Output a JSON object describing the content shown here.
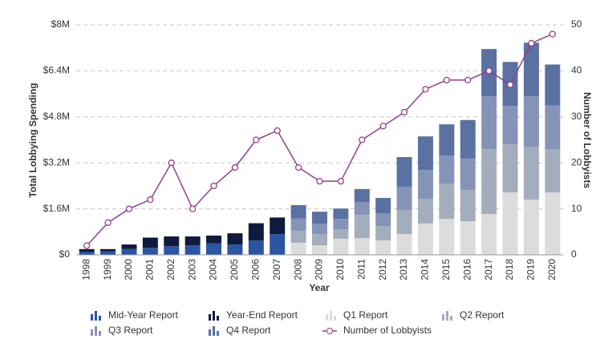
{
  "chart_data": {
    "type": "bar",
    "stacked": true,
    "x_label": "Year",
    "y_label": "Total Lobbying Spending",
    "y2_label": "Number of Lobbyists",
    "categories": [
      "1998",
      "1999",
      "2000",
      "2001",
      "2002",
      "2003",
      "2004",
      "2005",
      "2006",
      "2007",
      "2008",
      "2009",
      "2010",
      "2011",
      "2012",
      "2013",
      "2014",
      "2015",
      "2016",
      "2017",
      "2018",
      "2019",
      "2020"
    ],
    "series": [
      {
        "name": "Mid-Year Report",
        "color": "#2b55a3",
        "values": [
          100000,
          120000,
          200000,
          250000,
          300000,
          330000,
          400000,
          360000,
          500000,
          720000,
          null,
          null,
          null,
          null,
          null,
          null,
          null,
          null,
          null,
          null,
          null,
          null,
          null
        ]
      },
      {
        "name": "Year-End Report",
        "color": "#0f1b3d",
        "values": [
          100000,
          80000,
          160000,
          350000,
          340000,
          310000,
          270000,
          390000,
          600000,
          580000,
          null,
          null,
          null,
          null,
          null,
          null,
          null,
          null,
          null,
          null,
          null,
          null,
          null
        ]
      },
      {
        "name": "Q1 Report",
        "color": "#dcdcdc",
        "values": [
          null,
          null,
          null,
          null,
          null,
          null,
          null,
          null,
          null,
          null,
          420000,
          330000,
          560000,
          580000,
          500000,
          720000,
          1090000,
          1250000,
          1170000,
          1420000,
          2170000,
          1920000,
          2170000
        ]
      },
      {
        "name": "Q2 Report",
        "color": "#a4adbb",
        "values": [
          null,
          null,
          null,
          null,
          null,
          null,
          null,
          null,
          null,
          null,
          420000,
          390000,
          330000,
          810000,
          500000,
          840000,
          860000,
          1230000,
          1090000,
          2260000,
          1670000,
          1840000,
          1500000
        ]
      },
      {
        "name": "Q3 Report",
        "color": "#8594b6",
        "values": [
          null,
          null,
          null,
          null,
          null,
          null,
          null,
          null,
          null,
          null,
          420000,
          360000,
          360000,
          450000,
          450000,
          810000,
          1000000,
          970000,
          1090000,
          1840000,
          1340000,
          1750000,
          1530000
        ]
      },
      {
        "name": "Q4 Report",
        "color": "#5a71a1",
        "values": [
          null,
          null,
          null,
          null,
          null,
          null,
          null,
          null,
          null,
          null,
          470000,
          420000,
          360000,
          450000,
          530000,
          1030000,
          1170000,
          1090000,
          1340000,
          1640000,
          1530000,
          1870000,
          1420000
        ]
      },
      {
        "name": "Number of Lobbyists",
        "color": "#8e3f91",
        "type": "line",
        "axis": "y2",
        "values": [
          2,
          7,
          10,
          12,
          20,
          10,
          15,
          19,
          25,
          27,
          19,
          16,
          16,
          25,
          28,
          31,
          36,
          38,
          38,
          40,
          37,
          46,
          48
        ]
      }
    ],
    "ylim": [
      0,
      8000000
    ],
    "yticks": [
      {
        "value": 0,
        "label": "$0"
      },
      {
        "value": 1600000,
        "label": "$1.6M"
      },
      {
        "value": 3200000,
        "label": "$3.2M"
      },
      {
        "value": 4800000,
        "label": "$4.8M"
      },
      {
        "value": 6400000,
        "label": "$6.4M"
      },
      {
        "value": 8000000,
        "label": "$8M"
      }
    ],
    "y2lim": [
      0,
      50
    ],
    "y2ticks": [
      0,
      10,
      20,
      30,
      40,
      50
    ],
    "grid": true,
    "legend": "bottom"
  }
}
